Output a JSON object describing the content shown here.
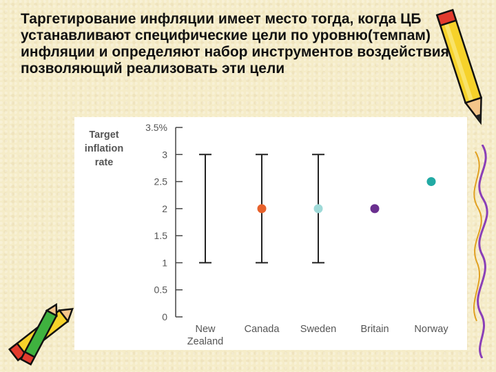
{
  "slide": {
    "text": "Таргетирование инфляции имеет место тогда, когда ЦБ устанавливают специфические цели по уровню(темпам) инфляции и определяют набор инструментов воздействия, позволяющий реализовать эти цели"
  },
  "chart_data": {
    "type": "scatter",
    "ylabel_lines": [
      "Target",
      "inflation",
      "rate"
    ],
    "ylim": [
      0,
      3.5
    ],
    "yticks": [
      0,
      0.5,
      1,
      1.5,
      2,
      2.5,
      3,
      3.5
    ],
    "ytick_labels": [
      "0",
      "0.5",
      "1",
      "1.5",
      "2",
      "2.5",
      "3",
      "3.5%"
    ],
    "categories": [
      {
        "label_lines": [
          "New",
          "Zealand"
        ],
        "range": [
          1,
          3
        ],
        "point": null,
        "color": null
      },
      {
        "label_lines": [
          "Canada"
        ],
        "range": [
          1,
          3
        ],
        "point": 2,
        "color": "#e8622c"
      },
      {
        "label_lines": [
          "Sweden"
        ],
        "range": [
          1,
          3
        ],
        "point": 2,
        "color": "#9fdad8"
      },
      {
        "label_lines": [
          "Britain"
        ],
        "range": null,
        "point": 2,
        "color": "#6a2f8f"
      },
      {
        "label_lines": [
          "Norway"
        ],
        "range": null,
        "point": 2.5,
        "color": "#22aaa4"
      }
    ],
    "axis_color": "#444444",
    "label_color": "#555555"
  }
}
